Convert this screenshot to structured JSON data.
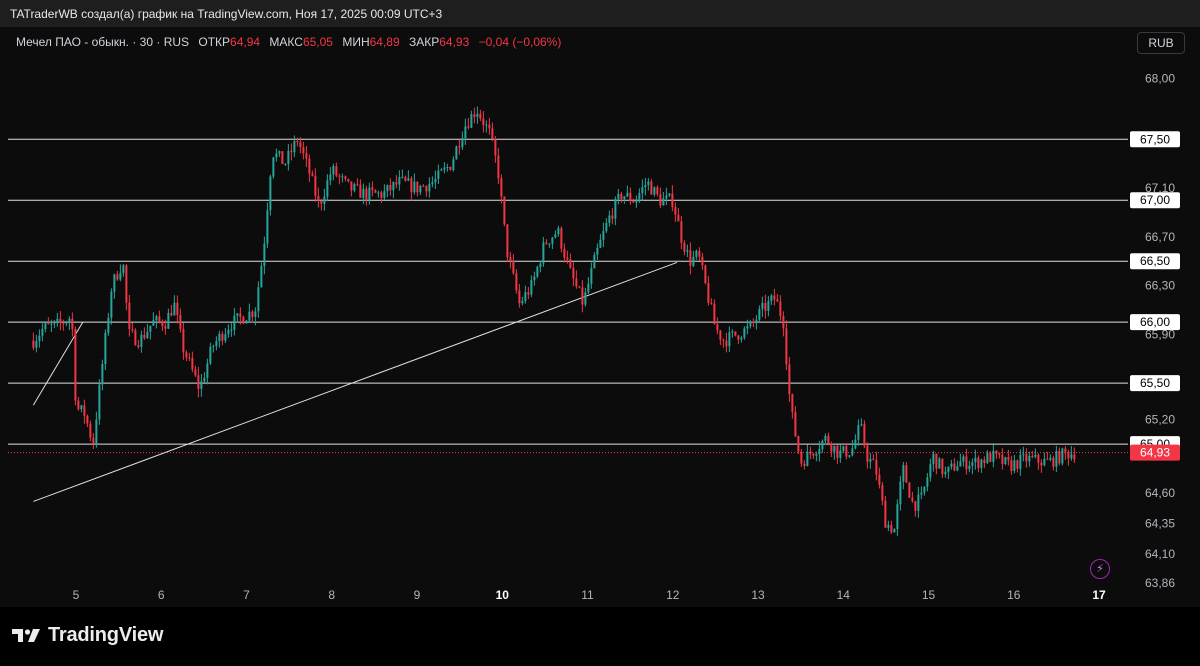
{
  "header": {
    "credit": "TATraderWB создал(а) график на TradingView.com, Ноя 17, 2025 00:09 UTC+3"
  },
  "legend": {
    "symbol": "Мечел ПАО - обыкн. · 30 · RUS",
    "open_label": "ОТКР",
    "open_value": "64,94",
    "high_label": "МАКС",
    "high_value": "65,05",
    "low_label": "МИН",
    "low_value": "64,89",
    "close_label": "ЗАКР",
    "close_value": "64,93",
    "change": "−0,04 (−0,06%)"
  },
  "currency_button": "RUB",
  "footer": {
    "brand": "TradingView"
  },
  "colors": {
    "up": "#26a69a",
    "down": "#f23645",
    "background": "#0c0c0c",
    "levels": "#e0e0e0"
  },
  "chart_data": {
    "type": "candlestick",
    "timeframe": "30",
    "currency": "RUB",
    "y_axis": {
      "ylim": [
        63.82,
        68.15
      ],
      "tick_labels": [
        "68,00",
        "67,10",
        "66,70",
        "66,30",
        "65,90",
        "65,20",
        "64,60",
        "64,35",
        "64,10",
        "63,86"
      ],
      "tick_values": [
        68.0,
        67.1,
        66.7,
        66.3,
        65.9,
        65.2,
        64.6,
        64.35,
        64.1,
        63.86
      ]
    },
    "x_axis": {
      "tick_labels": [
        "5",
        "6",
        "7",
        "8",
        "9",
        "10",
        "11",
        "12",
        "13",
        "14",
        "15",
        "16",
        "17"
      ],
      "bold": [
        "10",
        "17"
      ]
    },
    "horizontal_levels": [
      {
        "value": 67.5,
        "label": "67,50"
      },
      {
        "value": 67.0,
        "label": "67,00"
      },
      {
        "value": 66.5,
        "label": "66,50"
      },
      {
        "value": 66.0,
        "label": "66,00"
      },
      {
        "value": 65.5,
        "label": "65,50"
      },
      {
        "value": 65.0,
        "label": "65,00"
      }
    ],
    "last_price": {
      "value": 64.93,
      "label": "64,93"
    },
    "trendlines": [
      {
        "from": {
          "day": 4.5,
          "price": 64.53
        },
        "to": {
          "day": 12.05,
          "price": 66.49
        }
      },
      {
        "from": {
          "day": 4.5,
          "price": 65.32
        },
        "to": {
          "day": 5.08,
          "price": 66.0
        }
      }
    ],
    "price_path": [
      {
        "day": 4.5,
        "price": 65.85
      },
      {
        "day": 4.62,
        "price": 65.95
      },
      {
        "day": 4.8,
        "price": 65.98
      },
      {
        "day": 4.95,
        "price": 66.05
      },
      {
        "day": 5.0,
        "price": 65.3
      },
      {
        "day": 5.1,
        "price": 65.25
      },
      {
        "day": 5.2,
        "price": 65.0
      },
      {
        "day": 5.3,
        "price": 65.6
      },
      {
        "day": 5.42,
        "price": 66.3
      },
      {
        "day": 5.55,
        "price": 66.5
      },
      {
        "day": 5.62,
        "price": 65.9
      },
      {
        "day": 5.75,
        "price": 65.85
      },
      {
        "day": 5.9,
        "price": 66.0
      },
      {
        "day": 6.05,
        "price": 66.0
      },
      {
        "day": 6.15,
        "price": 66.15
      },
      {
        "day": 6.25,
        "price": 65.8
      },
      {
        "day": 6.45,
        "price": 65.45
      },
      {
        "day": 6.6,
        "price": 65.8
      },
      {
        "day": 6.8,
        "price": 65.98
      },
      {
        "day": 7.1,
        "price": 66.1
      },
      {
        "day": 7.2,
        "price": 66.6
      },
      {
        "day": 7.3,
        "price": 67.4
      },
      {
        "day": 7.45,
        "price": 67.3
      },
      {
        "day": 7.6,
        "price": 67.5
      },
      {
        "day": 7.75,
        "price": 67.2
      },
      {
        "day": 7.85,
        "price": 66.95
      },
      {
        "day": 8.0,
        "price": 67.25
      },
      {
        "day": 8.2,
        "price": 67.1
      },
      {
        "day": 8.4,
        "price": 67.05
      },
      {
        "day": 8.6,
        "price": 67.05
      },
      {
        "day": 8.8,
        "price": 67.15
      },
      {
        "day": 9.0,
        "price": 67.1
      },
      {
        "day": 9.2,
        "price": 67.15
      },
      {
        "day": 9.4,
        "price": 67.3
      },
      {
        "day": 9.55,
        "price": 67.6
      },
      {
        "day": 9.7,
        "price": 67.75
      },
      {
        "day": 9.85,
        "price": 67.55
      },
      {
        "day": 9.95,
        "price": 67.25
      },
      {
        "day": 10.05,
        "price": 66.6
      },
      {
        "day": 10.2,
        "price": 66.15
      },
      {
        "day": 10.35,
        "price": 66.3
      },
      {
        "day": 10.5,
        "price": 66.65
      },
      {
        "day": 10.65,
        "price": 66.75
      },
      {
        "day": 10.8,
        "price": 66.4
      },
      {
        "day": 10.95,
        "price": 66.15
      },
      {
        "day": 11.1,
        "price": 66.55
      },
      {
        "day": 11.25,
        "price": 66.85
      },
      {
        "day": 11.4,
        "price": 67.05
      },
      {
        "day": 11.55,
        "price": 67.0
      },
      {
        "day": 11.7,
        "price": 67.15
      },
      {
        "day": 11.85,
        "price": 67.0
      },
      {
        "day": 12.0,
        "price": 67.0
      },
      {
        "day": 12.1,
        "price": 66.7
      },
      {
        "day": 12.2,
        "price": 66.5
      },
      {
        "day": 12.3,
        "price": 66.55
      },
      {
        "day": 12.4,
        "price": 66.25
      },
      {
        "day": 12.5,
        "price": 65.95
      },
      {
        "day": 12.6,
        "price": 65.85
      },
      {
        "day": 12.75,
        "price": 65.9
      },
      {
        "day": 12.9,
        "price": 65.95
      },
      {
        "day": 13.05,
        "price": 66.1
      },
      {
        "day": 13.2,
        "price": 66.2
      },
      {
        "day": 13.3,
        "price": 66.0
      },
      {
        "day": 13.38,
        "price": 65.3
      },
      {
        "day": 13.5,
        "price": 64.85
      },
      {
        "day": 13.65,
        "price": 64.95
      },
      {
        "day": 13.8,
        "price": 65.05
      },
      {
        "day": 13.95,
        "price": 64.92
      },
      {
        "day": 14.1,
        "price": 64.95
      },
      {
        "day": 14.2,
        "price": 65.15
      },
      {
        "day": 14.28,
        "price": 64.9
      },
      {
        "day": 14.38,
        "price": 64.8
      },
      {
        "day": 14.5,
        "price": 64.35
      },
      {
        "day": 14.6,
        "price": 64.3
      },
      {
        "day": 14.7,
        "price": 64.8
      },
      {
        "day": 14.82,
        "price": 64.5
      },
      {
        "day": 14.92,
        "price": 64.55
      },
      {
        "day": 15.05,
        "price": 64.9
      },
      {
        "day": 15.2,
        "price": 64.75
      },
      {
        "day": 15.35,
        "price": 64.85
      },
      {
        "day": 15.55,
        "price": 64.85
      },
      {
        "day": 15.75,
        "price": 64.9
      },
      {
        "day": 15.95,
        "price": 64.82
      },
      {
        "day": 16.15,
        "price": 64.88
      },
      {
        "day": 16.4,
        "price": 64.85
      },
      {
        "day": 16.6,
        "price": 64.92
      },
      {
        "day": 16.72,
        "price": 64.93
      }
    ]
  }
}
